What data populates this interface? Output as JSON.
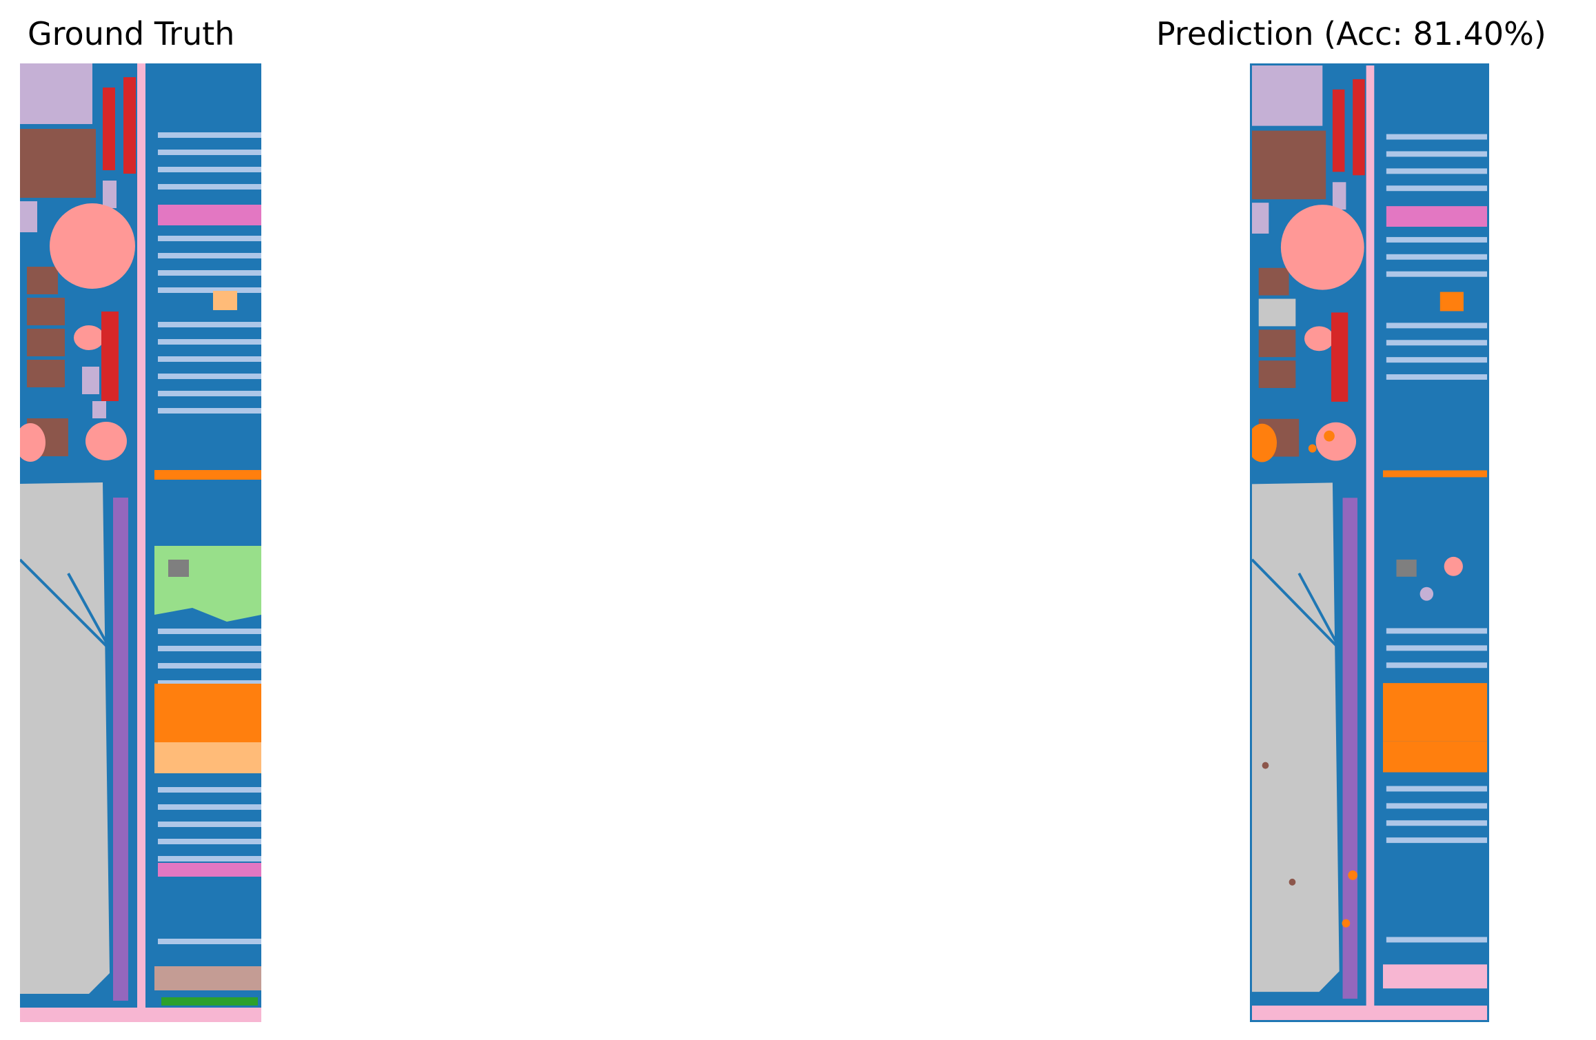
{
  "figure": {
    "left_title": "Ground Truth",
    "right_title": "Prediction (Acc: 81.40%)",
    "accuracy_percent": 81.4
  },
  "palette": {
    "background_class": "#1f77b4",
    "class_light_blue": "#aec7e8",
    "class_orange": "#ff7f0e",
    "class_light_orange": "#ffbb78",
    "class_green": "#2ca02c",
    "class_light_green": "#98df8a",
    "class_red": "#d62728",
    "class_salmon": "#ff9896",
    "class_purple": "#9467bd",
    "class_lavender": "#c5b0d5",
    "class_brown": "#8c564b",
    "class_tan": "#c49c94",
    "class_pink": "#e377c2",
    "class_light_pink": "#f7b6d2",
    "class_gray": "#7f7f7f",
    "class_light_gray": "#c7c7c7"
  }
}
